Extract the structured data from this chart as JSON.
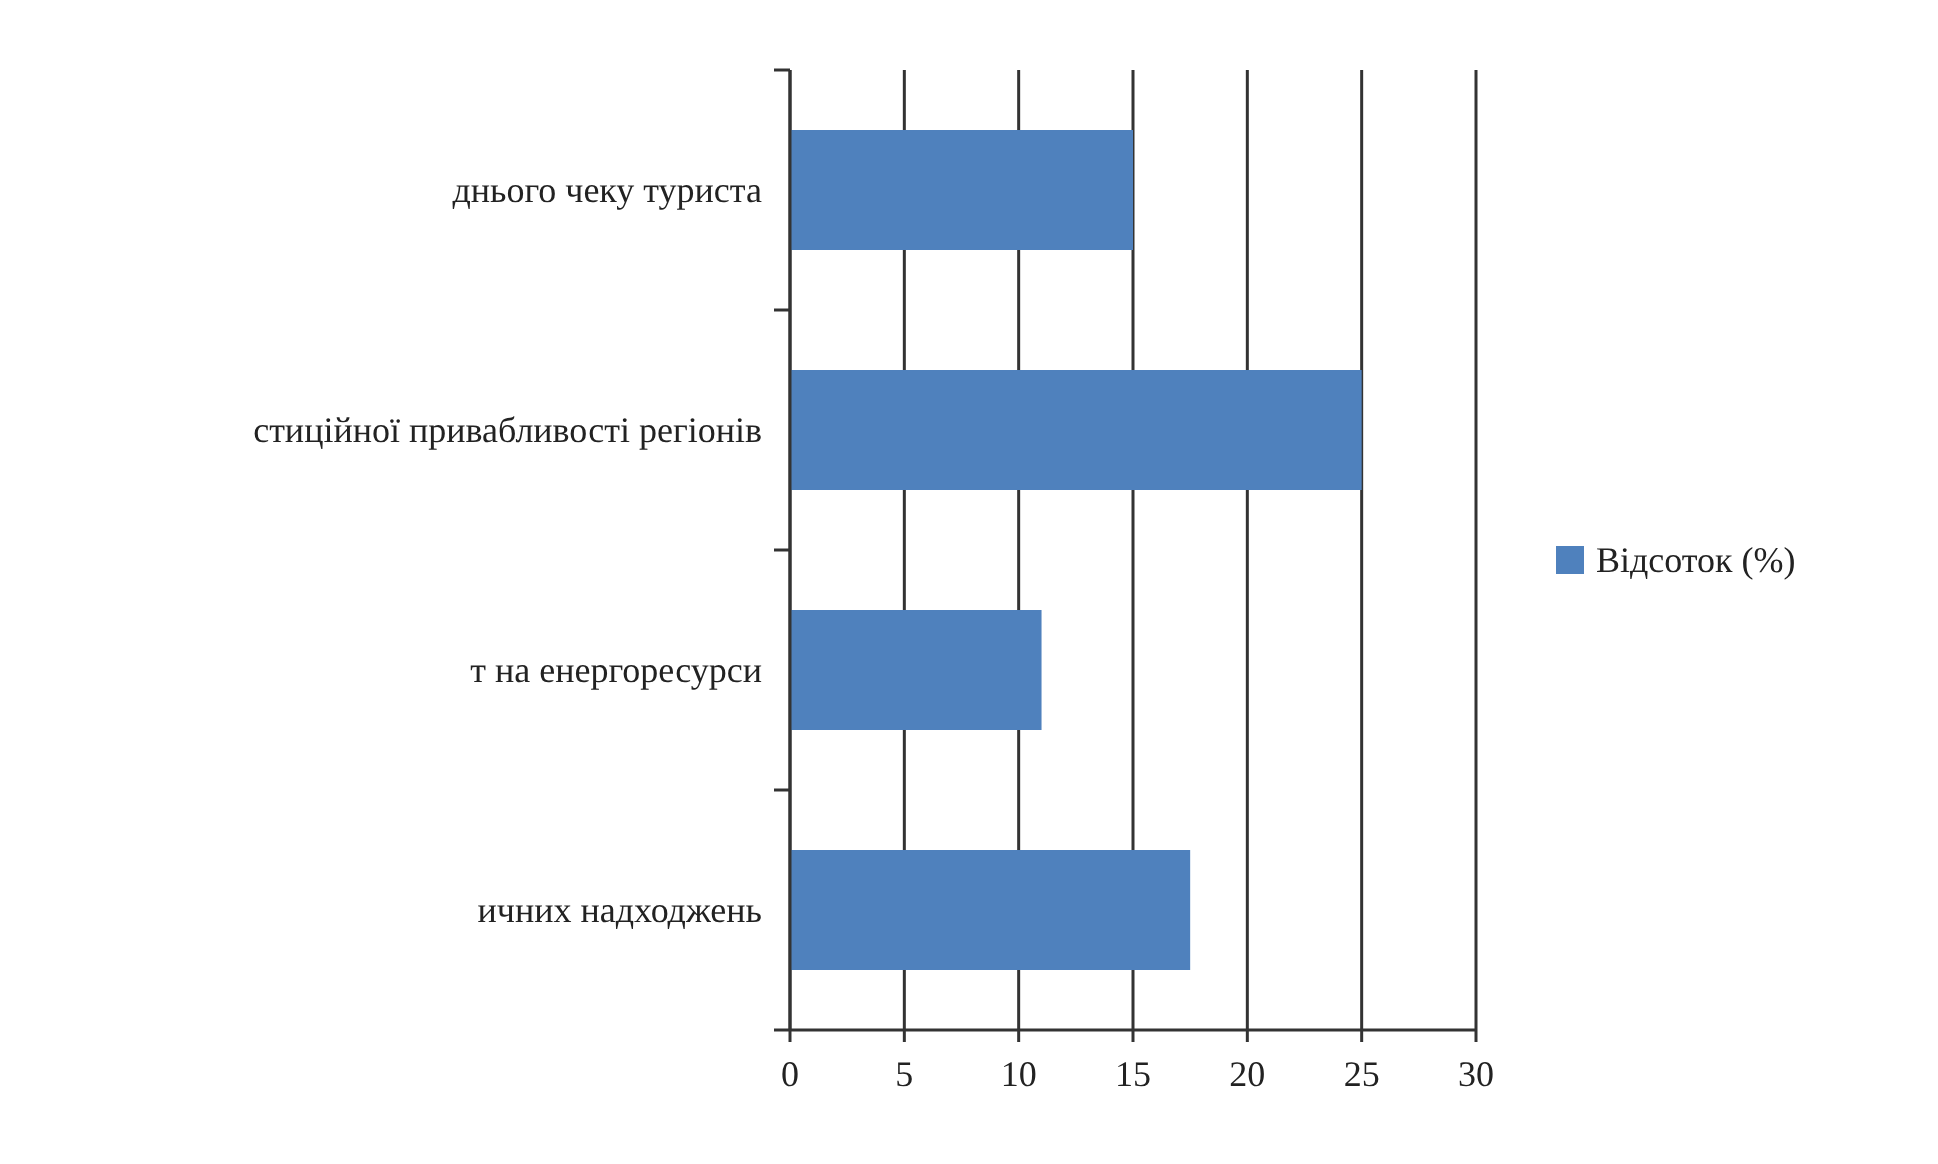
{
  "chart_data": {
    "type": "bar",
    "orientation": "horizontal",
    "categories": [
      "днього чеку туриста",
      "стиційної привабливості регіонів",
      "т на енергоресурси",
      "ичних надходжень"
    ],
    "series": [
      {
        "name": "Відсоток (%)",
        "color": "#4f81bd",
        "values": [
          15,
          25,
          11,
          17.5
        ]
      }
    ],
    "xlim": [
      0,
      30
    ],
    "xticks": [
      0,
      5,
      10,
      15,
      20,
      25,
      30
    ],
    "grid": "x",
    "legend": "right"
  }
}
